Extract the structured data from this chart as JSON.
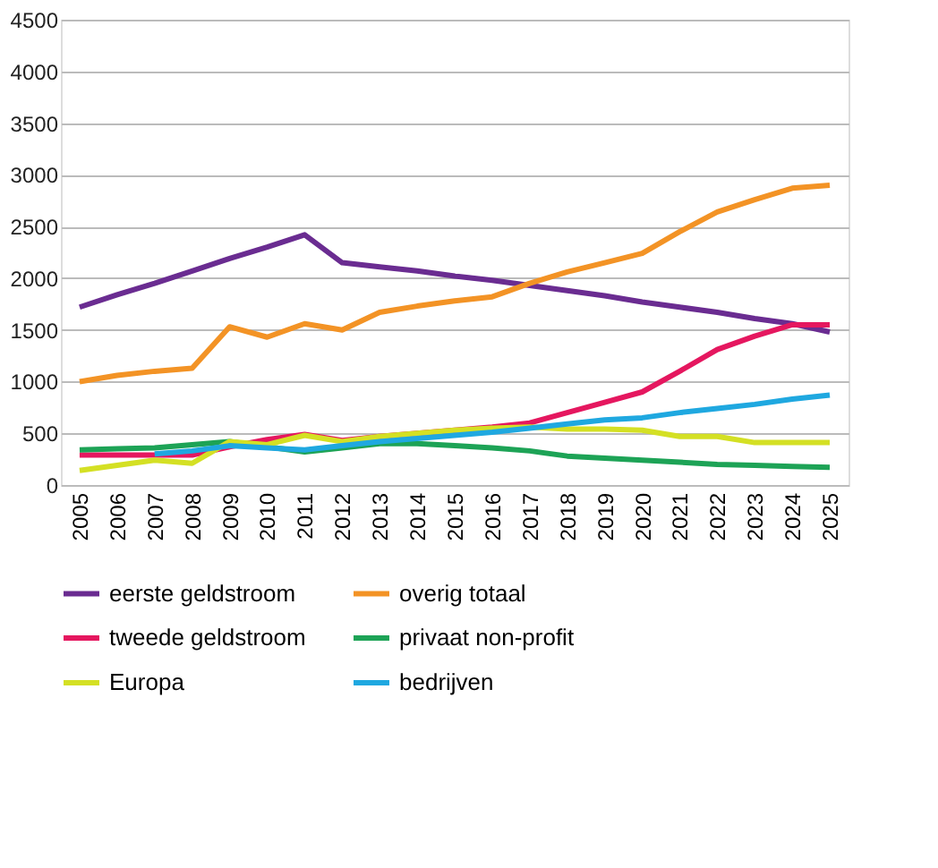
{
  "chart_data": {
    "type": "line",
    "categories": [
      "2005",
      "2006",
      "2007",
      "2008",
      "2009",
      "2010",
      "2011",
      "2012",
      "2013",
      "2014",
      "2015",
      "2016",
      "2017",
      "2018",
      "2019",
      "2020",
      "2021",
      "2022",
      "2023",
      "2024",
      "2025"
    ],
    "ylim": [
      0,
      4500
    ],
    "yticks": [
      0,
      500,
      1000,
      1500,
      2000,
      2500,
      3000,
      3500,
      4000,
      4500
    ],
    "grid": "y",
    "legend": "bottom",
    "marker": "none",
    "line_style": "solid",
    "series": [
      {
        "name": "eerste geldstroom",
        "color": "#6a2c91",
        "values": [
          1720,
          1840,
          1950,
          2070,
          2190,
          2300,
          2420,
          2150,
          2110,
          2070,
          2020,
          1980,
          1930,
          1880,
          1830,
          1770,
          1720,
          1670,
          1610,
          1560,
          1480
        ]
      },
      {
        "name": "overig totaal",
        "color": "#f39325",
        "values": [
          1000,
          1060,
          1100,
          1130,
          1530,
          1430,
          1560,
          1500,
          1670,
          1730,
          1780,
          1820,
          1950,
          2060,
          2150,
          2240,
          2450,
          2640,
          2760,
          2870,
          2900
        ]
      },
      {
        "name": "tweede geldstroom",
        "color": "#e5175f",
        "values": [
          290,
          290,
          290,
          290,
          370,
          440,
          490,
          430,
          470,
          500,
          530,
          560,
          600,
          700,
          800,
          900,
          1100,
          1310,
          1440,
          1550,
          1550
        ]
      },
      {
        "name": "privaat non-profit",
        "color": "#1da356",
        "values": [
          340,
          350,
          360,
          390,
          420,
          370,
          320,
          360,
          400,
          400,
          380,
          360,
          330,
          280,
          260,
          240,
          220,
          200,
          190,
          180,
          170
        ]
      },
      {
        "name": "Europa",
        "color": "#d4e024",
        "values": [
          140,
          190,
          240,
          210,
          420,
          390,
          480,
          420,
          470,
          500,
          530,
          550,
          560,
          540,
          540,
          530,
          470,
          470,
          410,
          410,
          410
        ]
      },
      {
        "name": "bedrijven",
        "color": "#1fa8e0",
        "values": [
          null,
          null,
          300,
          330,
          380,
          360,
          340,
          380,
          420,
          450,
          480,
          510,
          550,
          590,
          630,
          650,
          700,
          740,
          780,
          830,
          870
        ]
      }
    ]
  }
}
